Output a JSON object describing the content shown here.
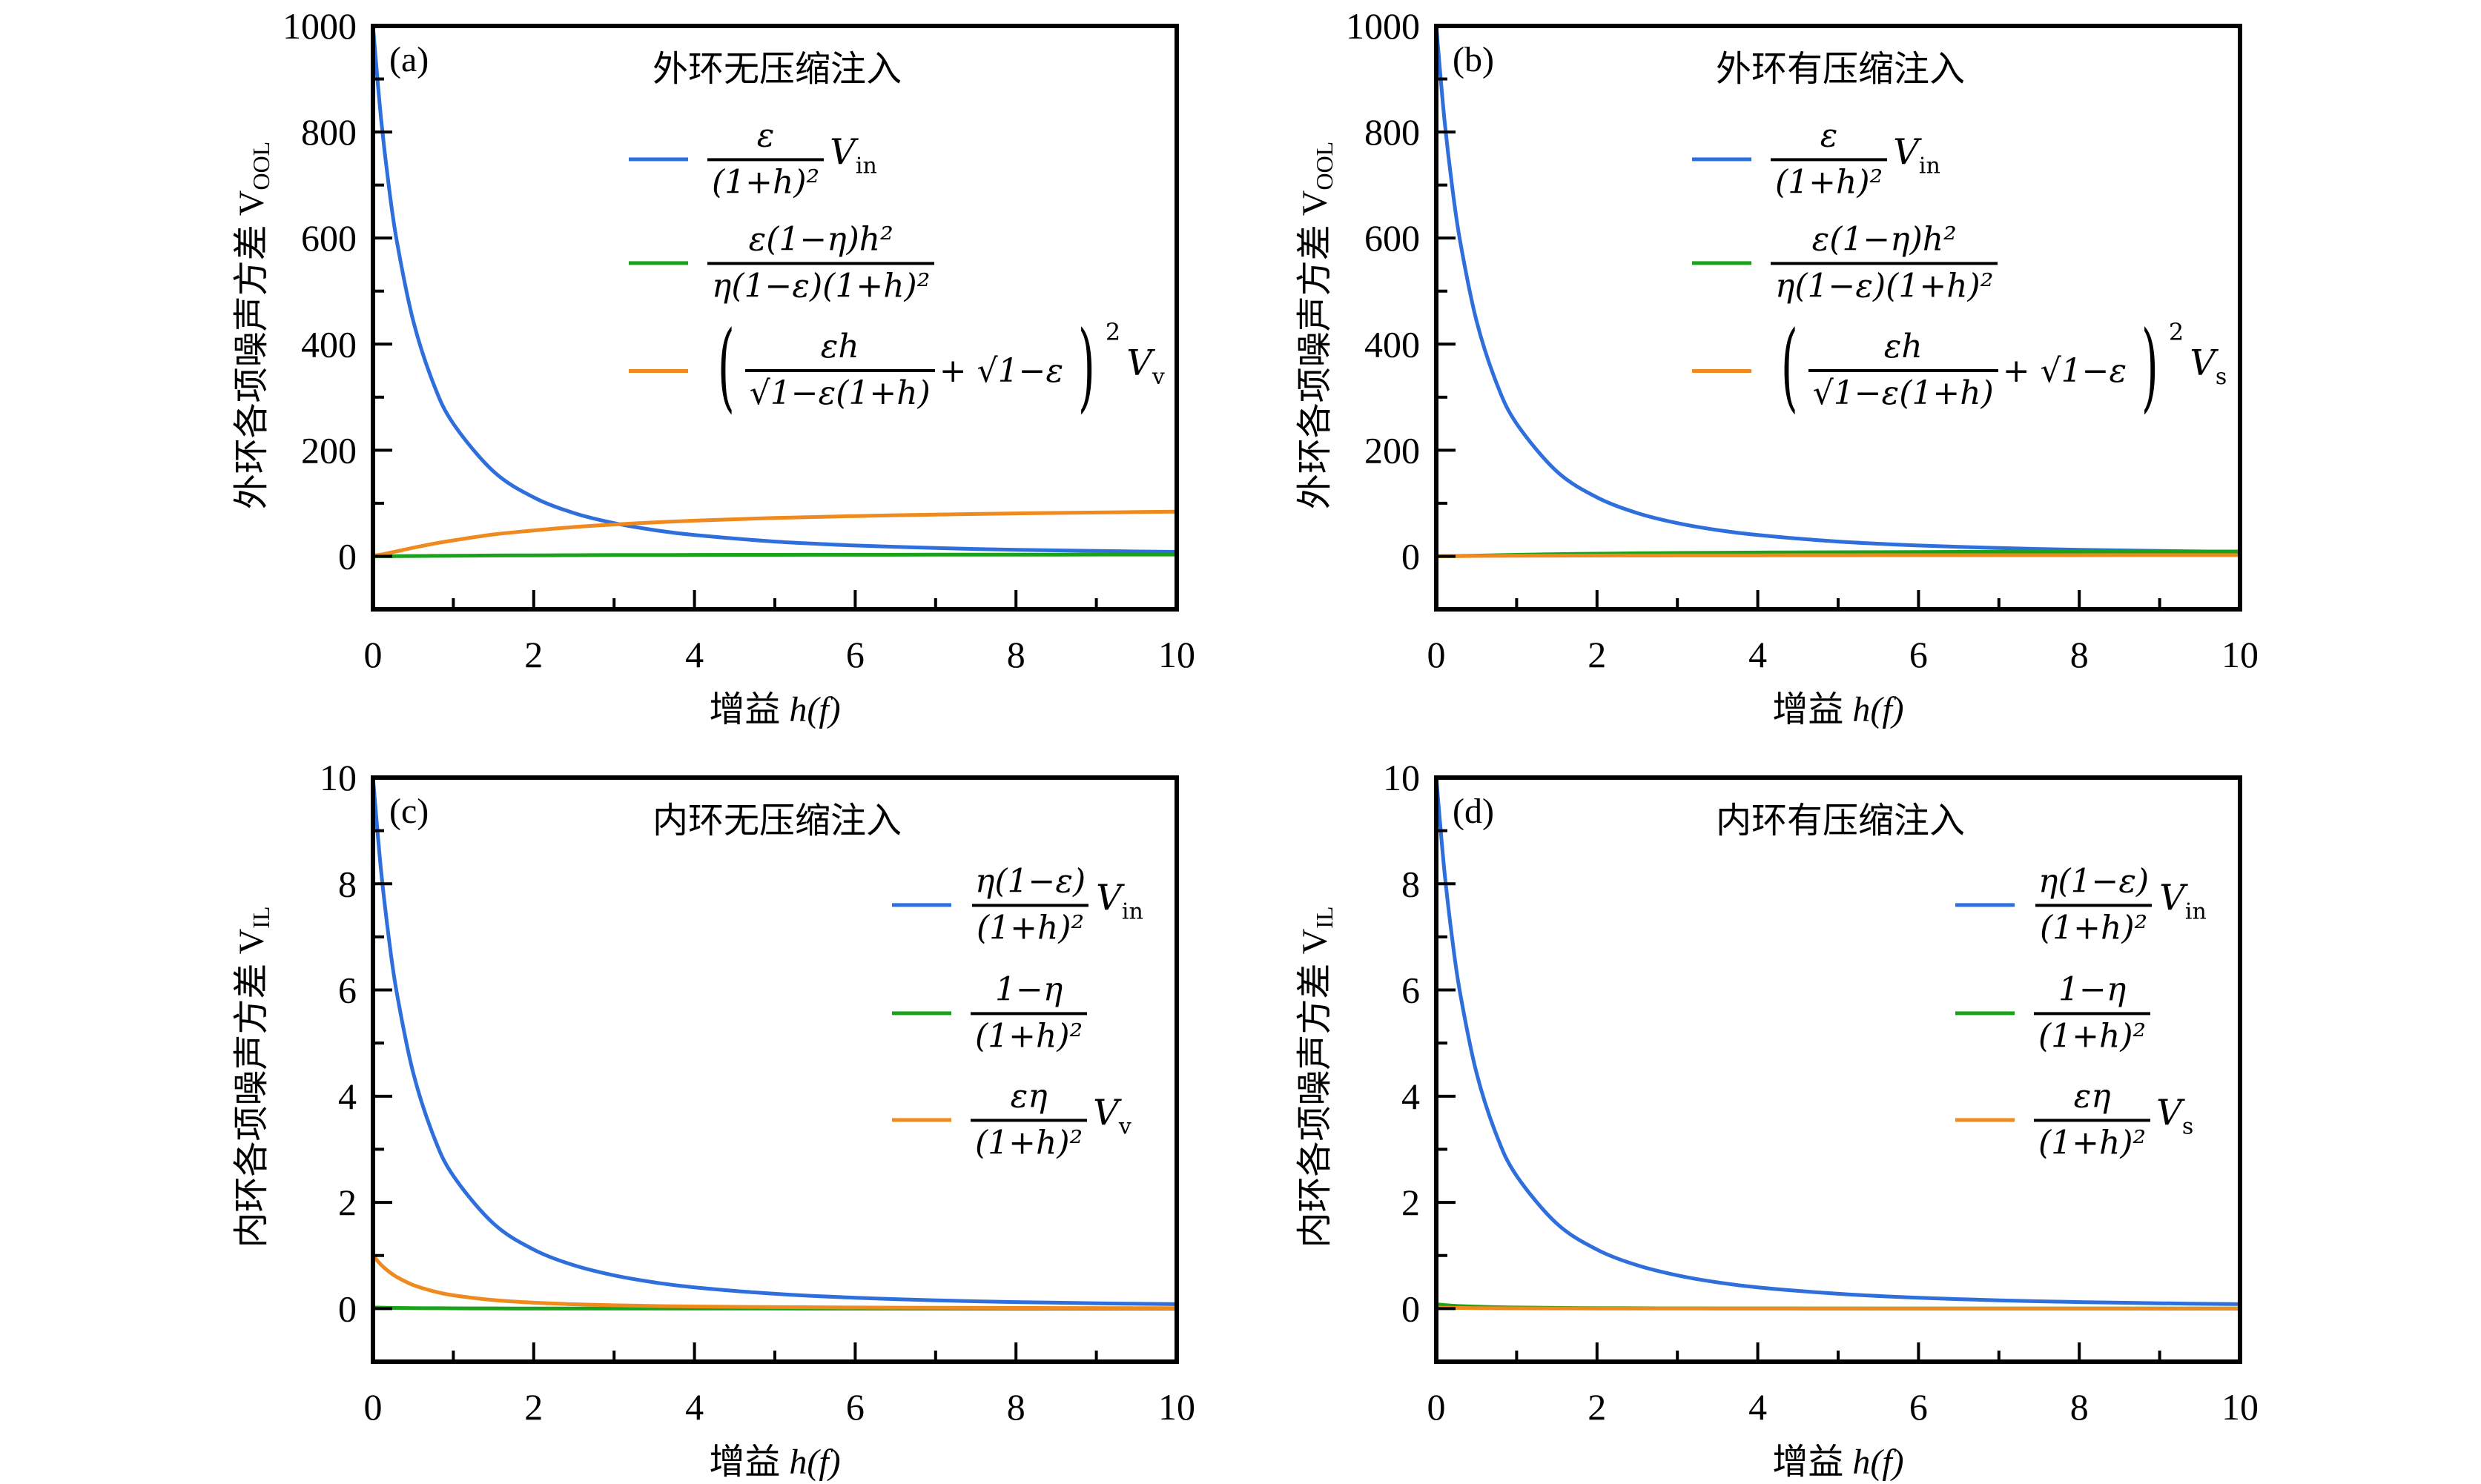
{
  "colors": {
    "blue": "#2f6fdc",
    "green": "#1aa31a",
    "orange": "#ef8a1e",
    "axis": "#000000"
  },
  "chart_data": [
    {
      "type": "line",
      "panel_label": "(a)",
      "title": "外环无压缩注入",
      "xlabel_prefix": "增益 ",
      "xlabel_math": "h(f)",
      "ylabel_prefix": "外环各项噪声方差 ",
      "ylabel_var": "V",
      "ylabel_sub": "OOL",
      "xlim": [
        0,
        10
      ],
      "ylim": [
        -100,
        1000
      ],
      "xticks": [
        "0",
        "2",
        "4",
        "6",
        "8",
        "10"
      ],
      "yticks": [
        "0",
        "200",
        "400",
        "600",
        "800",
        "1000"
      ],
      "legend_placement": "top-right",
      "x": [
        0,
        0.1,
        0.2,
        0.3,
        0.5,
        0.75,
        1,
        1.5,
        2,
        2.5,
        3,
        3.5,
        4,
        5,
        6,
        7,
        8,
        9,
        10
      ],
      "series": [
        {
          "name": "ε/(1+h)² V_in",
          "color": "blue",
          "legend": {
            "num": "ε",
            "den": "(1+h)²",
            "var": "V",
            "sub": "in"
          },
          "values": [
            1000,
            826.4,
            694.4,
            591.7,
            444.4,
            326.5,
            250,
            160,
            111.1,
            81.6,
            62.5,
            49.4,
            40,
            27.8,
            20.4,
            15.6,
            12.3,
            10,
            8.3
          ]
        },
        {
          "name": "ε(1−η)h²/(η(1−ε)(1+h)²)",
          "color": "green",
          "legend": {
            "num": "ε(1−η)h²",
            "den": "η(1−ε)(1+h)²"
          },
          "values": [
            0,
            0.03,
            0.11,
            0.21,
            0.44,
            0.74,
            1,
            1.44,
            1.78,
            2.04,
            2.25,
            2.42,
            2.56,
            2.78,
            2.94,
            3.06,
            3.16,
            3.24,
            3.31
          ]
        },
        {
          "name": "(εh/(√(1−ε)(1+h)) + √(1−ε))² V_v",
          "color": "orange",
          "legend": {
            "open": "(",
            "num": "εh",
            "den": "√1−ε(1+h)",
            "mid": "+ √1−ε",
            "close": ")",
            "sup": "2",
            "var": "V",
            "sub": "v"
          },
          "values": [
            1.0,
            3.3,
            6.3,
            9.4,
            16.1,
            23.5,
            30.0,
            41.1,
            48.7,
            55.1,
            59.9,
            63.9,
            67.2,
            72.2,
            75.8,
            78.6,
            80.8,
            82.6,
            84.1
          ]
        }
      ]
    },
    {
      "type": "line",
      "panel_label": "(b)",
      "title": "外环有压缩注入",
      "xlabel_prefix": "增益 ",
      "xlabel_math": "h(f)",
      "ylabel_prefix": "外环各项噪声方差 ",
      "ylabel_var": "V",
      "ylabel_sub": "OOL",
      "xlim": [
        0,
        10
      ],
      "ylim": [
        -100,
        1000
      ],
      "xticks": [
        "0",
        "2",
        "4",
        "6",
        "8",
        "10"
      ],
      "yticks": [
        "0",
        "200",
        "400",
        "600",
        "800",
        "1000"
      ],
      "legend_placement": "top-right",
      "x": [
        0,
        0.1,
        0.2,
        0.3,
        0.5,
        0.75,
        1,
        1.5,
        2,
        2.5,
        3,
        3.5,
        4,
        5,
        6,
        7,
        8,
        9,
        10
      ],
      "series": [
        {
          "name": "ε/(1+h)² V_in",
          "color": "blue",
          "legend": {
            "num": "ε",
            "den": "(1+h)²",
            "var": "V",
            "sub": "in"
          },
          "values": [
            1000,
            826.4,
            694.4,
            591.7,
            444.4,
            326.5,
            250,
            160,
            111.1,
            81.6,
            62.5,
            49.4,
            40,
            27.8,
            20.4,
            15.6,
            12.3,
            10,
            8.3
          ]
        },
        {
          "name": "ε(1−η)h²/(η(1−ε)(1+h)²)",
          "color": "green",
          "legend": {
            "num": "ε(1−η)h²",
            "den": "η(1−ε)(1+h)²"
          },
          "values": [
            0,
            0.09,
            0.31,
            0.59,
            1.22,
            2.02,
            2.75,
            3.96,
            4.89,
            5.61,
            6.19,
            6.65,
            7.04,
            7.64,
            8.08,
            8.42,
            8.69,
            8.91,
            9.09
          ]
        },
        {
          "name": "(εh/(√(1−ε)(1+h)) + √(1−ε))² V_s",
          "color": "orange",
          "legend": {
            "open": "(",
            "num": "εh",
            "den": "√1−ε(1+h)",
            "mid": "+ √1−ε",
            "close": ")",
            "sup": "2",
            "var": "V",
            "sub": "s"
          },
          "values": [
            0,
            0.2,
            0.3,
            0.4,
            0.6,
            0.8,
            1.0,
            1.2,
            1.4,
            1.5,
            1.6,
            1.7,
            1.8,
            1.9,
            2.0,
            2.1,
            2.1,
            2.2,
            2.2
          ]
        }
      ]
    },
    {
      "type": "line",
      "panel_label": "(c)",
      "title": "内环无压缩注入",
      "xlabel_prefix": "增益 ",
      "xlabel_math": "h(f)",
      "ylabel_prefix": "内环各项噪声方差 ",
      "ylabel_var": "V",
      "ylabel_sub": "IL",
      "xlim": [
        0,
        10
      ],
      "ylim": [
        -1,
        10
      ],
      "xticks": [
        "0",
        "2",
        "4",
        "6",
        "8",
        "10"
      ],
      "yticks": [
        "0",
        "2",
        "4",
        "6",
        "8",
        "10"
      ],
      "legend_placement": "right",
      "x": [
        0,
        0.1,
        0.2,
        0.3,
        0.5,
        0.75,
        1,
        1.5,
        2,
        2.5,
        3,
        3.5,
        4,
        5,
        6,
        7,
        8,
        9,
        10
      ],
      "series": [
        {
          "name": "η(1−ε)/(1+h)² V_in",
          "color": "blue",
          "legend": {
            "num": "η(1−ε)",
            "den": "(1+h)²",
            "var": "V",
            "sub": "in"
          },
          "values": [
            10,
            8.264,
            6.944,
            5.917,
            4.444,
            3.265,
            2.5,
            1.6,
            1.111,
            0.816,
            0.625,
            0.494,
            0.4,
            0.278,
            0.204,
            0.156,
            0.123,
            0.1,
            0.083
          ]
        },
        {
          "name": "(1−η)/(1+h)²",
          "color": "green",
          "legend": {
            "num": "1−η",
            "den": "(1+h)²"
          },
          "values": [
            0.02,
            0.017,
            0.014,
            0.012,
            0.009,
            0.007,
            0.005,
            0.003,
            0.002,
            0.002,
            0.001,
            0.001,
            0.001,
            0.001,
            0,
            0,
            0,
            0,
            0
          ]
        },
        {
          "name": "εη/(1+h)² V_v",
          "color": "orange",
          "legend": {
            "num": "εη",
            "den": "(1+h)²",
            "var": "V",
            "sub": "v"
          },
          "values": [
            1,
            0.826,
            0.694,
            0.592,
            0.444,
            0.327,
            0.25,
            0.16,
            0.111,
            0.082,
            0.063,
            0.049,
            0.04,
            0.028,
            0.02,
            0.016,
            0.012,
            0.01,
            0.008
          ]
        }
      ]
    },
    {
      "type": "line",
      "panel_label": "(d)",
      "title": "内环有压缩注入",
      "xlabel_prefix": "增益 ",
      "xlabel_math": "h(f)",
      "ylabel_prefix": "内环各项噪声方差 ",
      "ylabel_var": "V",
      "ylabel_sub": "IL",
      "xlim": [
        0,
        10
      ],
      "ylim": [
        -1,
        10
      ],
      "xticks": [
        "0",
        "2",
        "4",
        "6",
        "8",
        "10"
      ],
      "yticks": [
        "0",
        "2",
        "4",
        "6",
        "8",
        "10"
      ],
      "legend_placement": "right",
      "x": [
        0,
        0.1,
        0.2,
        0.3,
        0.5,
        0.75,
        1,
        1.5,
        2,
        2.5,
        3,
        3.5,
        4,
        5,
        6,
        7,
        8,
        9,
        10
      ],
      "series": [
        {
          "name": "η(1−ε)/(1+h)² V_in",
          "color": "blue",
          "legend": {
            "num": "η(1−ε)",
            "den": "(1+h)²",
            "var": "V",
            "sub": "in"
          },
          "values": [
            10,
            8.264,
            6.944,
            5.917,
            4.444,
            3.265,
            2.5,
            1.6,
            1.111,
            0.816,
            0.625,
            0.494,
            0.4,
            0.278,
            0.204,
            0.156,
            0.123,
            0.1,
            0.083
          ]
        },
        {
          "name": "(1−η)/(1+h)²",
          "color": "green",
          "legend": {
            "num": "1−η",
            "den": "(1+h)²"
          },
          "values": [
            0.08,
            0.066,
            0.056,
            0.047,
            0.036,
            0.026,
            0.02,
            0.013,
            0.009,
            0.007,
            0.005,
            0.004,
            0.003,
            0.002,
            0.002,
            0.001,
            0.001,
            0.001,
            0.001
          ]
        },
        {
          "name": "εη/(1+h)² V_s",
          "color": "orange",
          "legend": {
            "num": "εη",
            "den": "(1+h)²",
            "var": "V",
            "sub": "s"
          },
          "values": [
            0.02,
            0.017,
            0.014,
            0.012,
            0.009,
            0.007,
            0.005,
            0.003,
            0.002,
            0.002,
            0.001,
            0.001,
            0.001,
            0.001,
            0,
            0,
            0,
            0,
            0
          ]
        }
      ]
    }
  ]
}
